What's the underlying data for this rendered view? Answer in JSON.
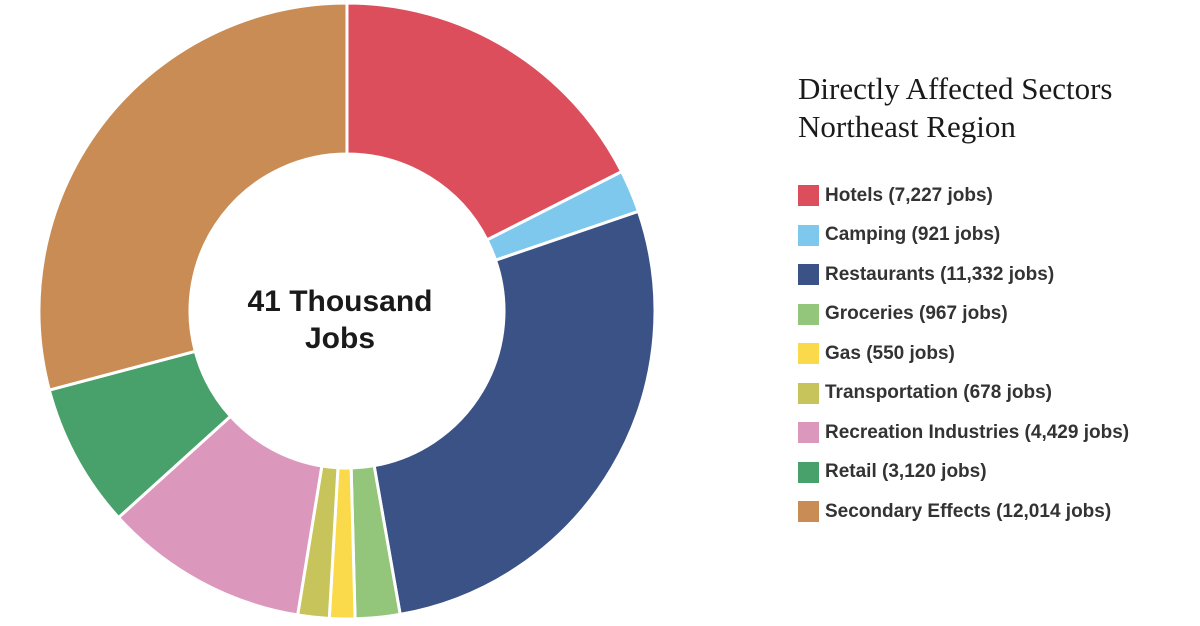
{
  "chart_data": {
    "type": "pie",
    "variant": "donut",
    "title": "Directly Affected Sectors",
    "subtitle": "Northeast Region",
    "center_label": [
      "41 Thousand",
      "Jobs"
    ],
    "legend_position": "right",
    "series": [
      {
        "name": "Hotels",
        "value": 7227,
        "color": "#DC4E5C",
        "legend_label": "Hotels (7,227 jobs)"
      },
      {
        "name": "Camping",
        "value": 921,
        "color": "#7DC8EC",
        "legend_label": "Camping (921 jobs)"
      },
      {
        "name": "Restaurants",
        "value": 11332,
        "color": "#3A5285",
        "legend_label": "Restaurants (11,332 jobs)"
      },
      {
        "name": "Groceries",
        "value": 967,
        "color": "#93C67A",
        "legend_label": "Groceries (967 jobs)"
      },
      {
        "name": "Gas",
        "value": 550,
        "color": "#FAD94A",
        "legend_label": "Gas (550 jobs)"
      },
      {
        "name": "Transportation",
        "value": 678,
        "color": "#C6C45A",
        "legend_label": "Transportation (678 jobs)"
      },
      {
        "name": "Recreation Industries",
        "value": 4429,
        "color": "#DC98BC",
        "legend_label": "Recreation Industries (4,429 jobs)"
      },
      {
        "name": "Retail",
        "value": 3120,
        "color": "#48A06A",
        "legend_label": "Retail (3,120 jobs)"
      },
      {
        "name": "Secondary Effects",
        "value": 12014,
        "color": "#C98C55",
        "legend_label": "Secondary Effects (12,014 jobs)"
      }
    ]
  }
}
